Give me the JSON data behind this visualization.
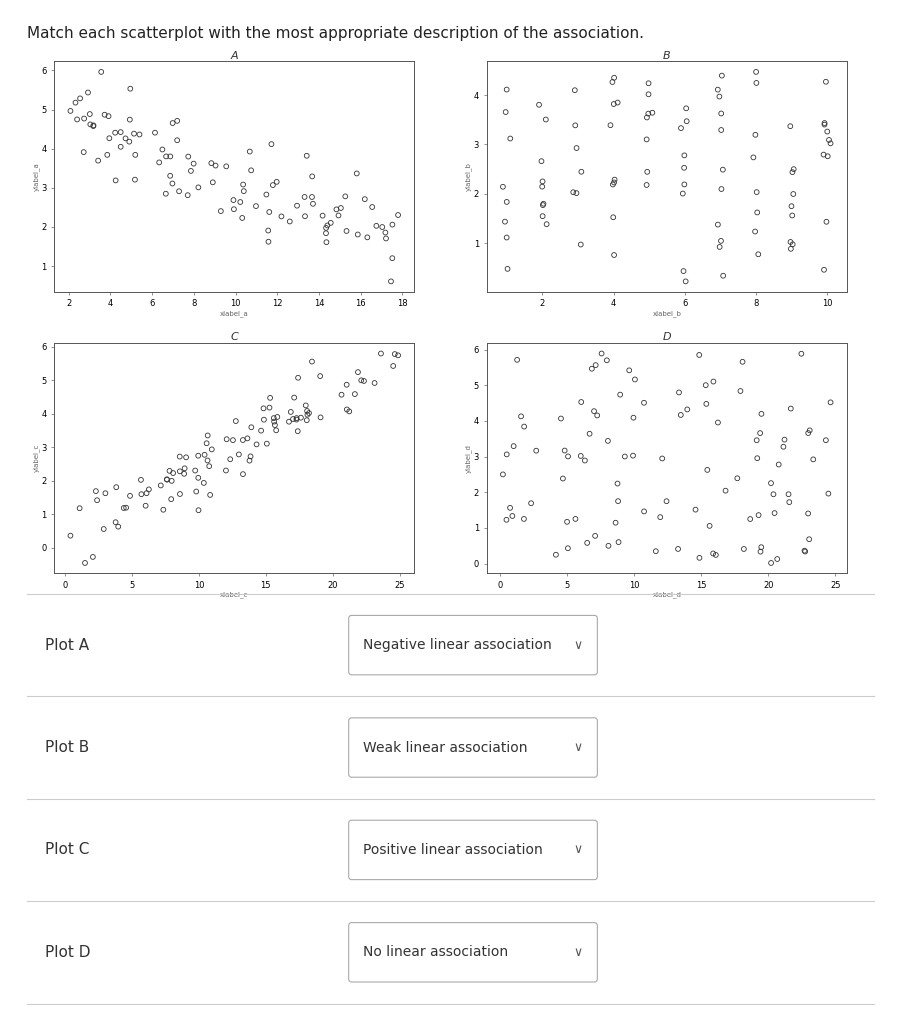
{
  "title": "Match each scatterplot with the most appropriate description of the association.",
  "title_fontsize": 11,
  "bg_color": "#ffffff",
  "plot_A": {
    "label": "A",
    "seed": 42,
    "n": 100,
    "slope": -0.18,
    "intercept": 5.0,
    "noise": 0.65,
    "x_min": 2,
    "x_max": 18
  },
  "plot_B": {
    "label": "B",
    "seed": 7,
    "x_positions": [
      1,
      2,
      3,
      4,
      5,
      6,
      7,
      8,
      9,
      10
    ],
    "counts": [
      8,
      9,
      7,
      10,
      8,
      9,
      11,
      8,
      9,
      10
    ]
  },
  "plot_C": {
    "label": "C",
    "seed": 123,
    "n": 100,
    "slope": 0.22,
    "intercept": 0.2,
    "noise": 0.5,
    "x_min": 0,
    "x_max": 25
  },
  "plot_D": {
    "label": "D",
    "seed": 55,
    "n": 100,
    "x_min": 0,
    "x_max": 25,
    "y_min": 0,
    "y_max": 6
  },
  "marker_size": 12,
  "marker_facecolor": "none",
  "marker_edgecolor": "#333333",
  "marker_linewidth": 0.6,
  "answer_rows": [
    {
      "label": "Plot A",
      "answer": "Negative linear association"
    },
    {
      "label": "Plot B",
      "answer": "Weak linear association"
    },
    {
      "label": "Plot C",
      "answer": "Positive linear association"
    },
    {
      "label": "Plot D",
      "answer": "No linear association"
    }
  ],
  "separator_color": "#cccccc",
  "dropdown_text_color": "#333333"
}
